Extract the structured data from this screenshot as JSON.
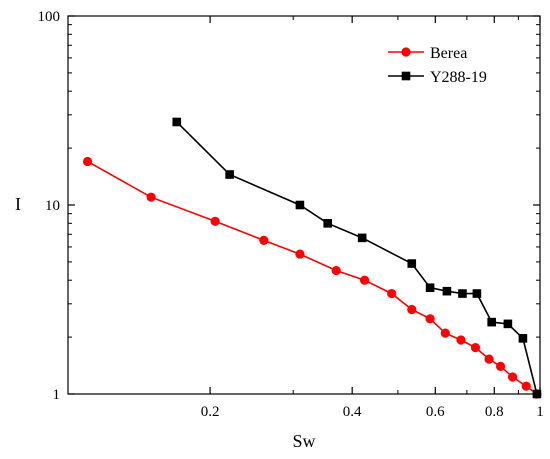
{
  "chart_data": {
    "type": "line",
    "xlabel": "Sw",
    "ylabel": "I",
    "x_scale": "log",
    "y_scale": "log",
    "xlim": [
      0.1,
      1
    ],
    "ylim": [
      1,
      100
    ],
    "x_tick_labels": [
      {
        "value": 0.2,
        "label": "0.2"
      },
      {
        "value": 0.4,
        "label": "0.4"
      },
      {
        "value": 0.6,
        "label": "0.6"
      },
      {
        "value": 0.8,
        "label": "0.8"
      },
      {
        "value": 1,
        "label": "1"
      }
    ],
    "y_tick_labels": [
      {
        "value": 1,
        "label": "1"
      },
      {
        "value": 10,
        "label": "10"
      },
      {
        "value": 100,
        "label": "100"
      }
    ],
    "grid": false,
    "legend_position": "top-right",
    "series": [
      {
        "name": "Berea",
        "color": "#ff0000",
        "marker": "circle",
        "x": [
          0.11,
          0.15,
          0.205,
          0.26,
          0.31,
          0.37,
          0.425,
          0.485,
          0.535,
          0.585,
          0.63,
          0.68,
          0.73,
          0.78,
          0.825,
          0.875,
          0.935,
          0.985
        ],
        "y": [
          17.0,
          11.0,
          8.2,
          6.5,
          5.5,
          4.5,
          4.0,
          3.4,
          2.8,
          2.5,
          2.1,
          1.93,
          1.76,
          1.53,
          1.4,
          1.23,
          1.1,
          1.0
        ]
      },
      {
        "name": "Y288-19",
        "color": "#000000",
        "marker": "square",
        "x": [
          0.17,
          0.22,
          0.31,
          0.355,
          0.42,
          0.535,
          0.585,
          0.635,
          0.685,
          0.735,
          0.79,
          0.855,
          0.92,
          0.985
        ],
        "y": [
          27.5,
          14.5,
          10.0,
          8.0,
          6.7,
          4.9,
          3.65,
          3.5,
          3.4,
          3.4,
          2.4,
          2.35,
          1.97,
          1.0
        ]
      }
    ]
  }
}
